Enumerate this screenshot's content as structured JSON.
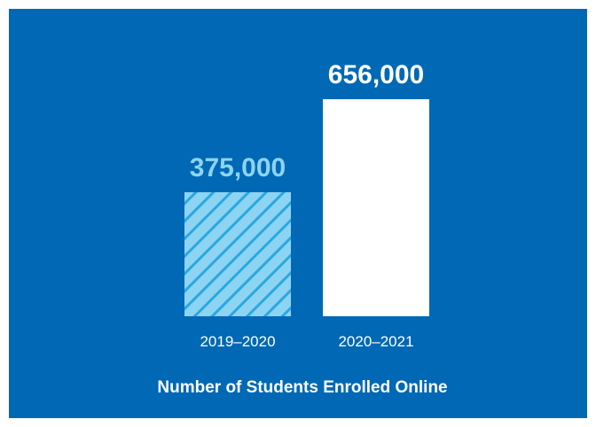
{
  "colors": {
    "panel_background": "#0068b4",
    "bar_2019": "#8dd4f2",
    "bar_2019_hatch": "#2aa8e0",
    "bar_2020": "#ffffff",
    "label_2019": "#8dd4f2",
    "label_2020": "#ffffff",
    "axis_text": "#ffffff"
  },
  "chart_data": {
    "type": "bar",
    "categories": [
      "2019–2020",
      "2020–2021"
    ],
    "values": [
      375000,
      656000
    ],
    "value_labels": [
      "375,000",
      "656,000"
    ],
    "title": "Number of Students Enrolled Online",
    "xlabel": "",
    "ylabel": "",
    "ylim": [
      0,
      656000
    ],
    "grid": false,
    "legend": "none",
    "bar_styles": [
      "hatched",
      "solid"
    ]
  }
}
